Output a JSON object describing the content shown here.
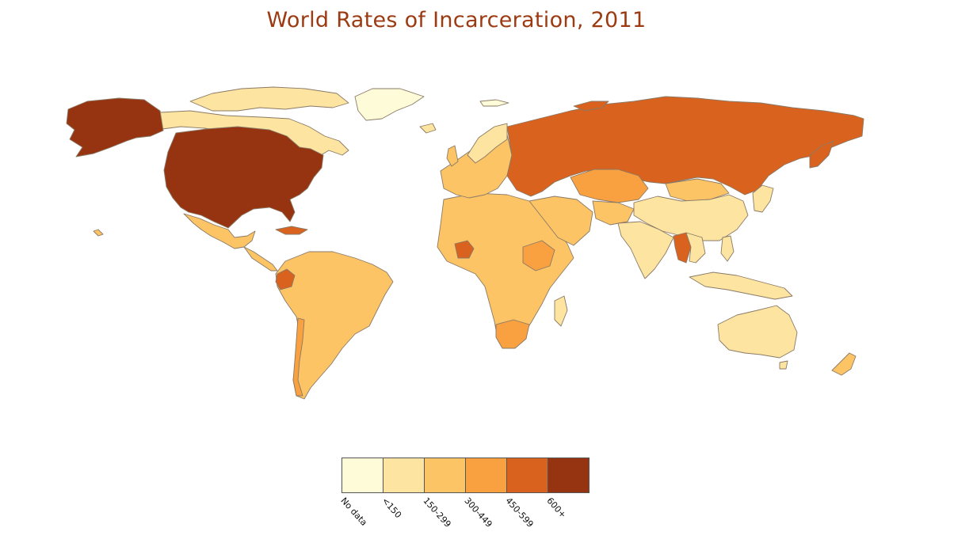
{
  "title": "World Rates of Incarceration, 2011",
  "legend": [
    {
      "label": "No data",
      "color": "#fefcd8"
    },
    {
      "label": "<150",
      "color": "#fde4a0"
    },
    {
      "label": "150-299",
      "color": "#fdc466"
    },
    {
      "label": "300-449",
      "color": "#f9a040"
    },
    {
      "label": "450-599",
      "color": "#d9621e"
    },
    {
      "label": "600+",
      "color": "#963412"
    }
  ],
  "regions": [
    {
      "name": "Alaska",
      "bin": "600+"
    },
    {
      "name": "United States",
      "bin": "600+"
    },
    {
      "name": "Canada",
      "bin": "<150"
    },
    {
      "name": "Greenland",
      "bin": "No data"
    },
    {
      "name": "Mexico",
      "bin": "150-299"
    },
    {
      "name": "Cuba",
      "bin": "450-599"
    },
    {
      "name": "Ecuador",
      "bin": "450-599"
    },
    {
      "name": "Brazil",
      "bin": "150-299"
    },
    {
      "name": "Chile",
      "bin": "300-449"
    },
    {
      "name": "Argentina",
      "bin": "150-299"
    },
    {
      "name": "Russia",
      "bin": "450-599"
    },
    {
      "name": "Kazakhstan",
      "bin": "300-449"
    },
    {
      "name": "China",
      "bin": "<150"
    },
    {
      "name": "Mongolia",
      "bin": "150-299"
    },
    {
      "name": "India",
      "bin": "<150"
    },
    {
      "name": "Thailand",
      "bin": "450-599"
    },
    {
      "name": "Ethiopia",
      "bin": "300-449"
    },
    {
      "name": "Ivory Coast",
      "bin": "450-599"
    },
    {
      "name": "South Africa",
      "bin": "300-449"
    },
    {
      "name": "Australia",
      "bin": "<150"
    },
    {
      "name": "New Zealand",
      "bin": "150-299"
    }
  ]
}
